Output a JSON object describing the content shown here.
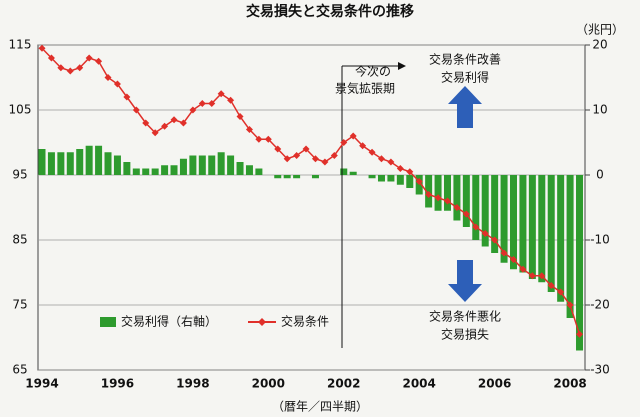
{
  "chart_data": {
    "type": "bar-line",
    "title": "交易損失と交易条件の推移",
    "x_label": "（暦年／四半期）",
    "y2_label": "（兆円）",
    "categories": [
      "1994",
      null,
      null,
      null,
      null,
      null,
      null,
      null,
      "1996",
      null,
      null,
      null,
      null,
      null,
      null,
      null,
      "1998",
      null,
      null,
      null,
      null,
      null,
      null,
      null,
      "2000",
      null,
      null,
      null,
      null,
      null,
      null,
      null,
      "2002",
      null,
      null,
      null,
      null,
      null,
      null,
      null,
      "2004",
      null,
      null,
      null,
      null,
      null,
      null,
      null,
      "2006",
      null,
      null,
      null,
      null,
      null,
      null,
      null,
      "2008",
      null
    ],
    "series": [
      {
        "name": "交易利得（右軸）",
        "type": "bar",
        "axis": "y2",
        "color": "#2e9b2e",
        "values": [
          4,
          3.5,
          3.5,
          3.5,
          4,
          4.5,
          4.5,
          3.5,
          3,
          2,
          1,
          1,
          1,
          1.5,
          1.5,
          2.5,
          3,
          3,
          3,
          3.5,
          3,
          2,
          1.5,
          1,
          0,
          -0.5,
          -0.5,
          -0.5,
          0,
          -0.5,
          0,
          0,
          1,
          0.5,
          0,
          -0.5,
          -1,
          -1,
          -1.5,
          -2,
          -3,
          -5,
          -5.5,
          -5.5,
          -7,
          -8,
          -10,
          -11,
          -12,
          -13.5,
          -14.5,
          -15,
          -16,
          -16.5,
          -18,
          -19.5,
          -22,
          -27
        ]
      },
      {
        "name": "交易条件",
        "type": "line",
        "color": "#e0302a",
        "values": [
          114.5,
          113,
          111.5,
          111,
          111.5,
          113,
          112.5,
          110,
          109,
          107,
          105,
          103,
          101.5,
          102.5,
          103.5,
          103,
          105,
          106,
          106,
          107.5,
          106.5,
          104,
          102,
          100.5,
          100.5,
          99,
          97.5,
          98,
          99,
          97.5,
          97,
          98,
          100,
          101,
          99.5,
          98.5,
          97.5,
          97,
          96,
          95.5,
          94,
          92,
          91.5,
          91,
          90,
          89,
          87,
          86,
          85,
          83,
          82,
          80.5,
          79.5,
          79.5,
          78,
          77,
          75,
          70.5
        ]
      }
    ],
    "ylim": [
      65,
      115
    ],
    "yticks": [
      65,
      75,
      85,
      95,
      105,
      115
    ],
    "y2lim": [
      -30,
      20
    ],
    "y2ticks": [
      -30,
      -20,
      -10,
      0,
      10,
      20
    ],
    "grid": true,
    "annotations": {
      "expansion": [
        "今次の",
        "景気拡張期"
      ],
      "improve": [
        "交易条件改善",
        "交易利得"
      ],
      "worsen": [
        "交易条件悪化",
        "交易損失"
      ]
    }
  }
}
